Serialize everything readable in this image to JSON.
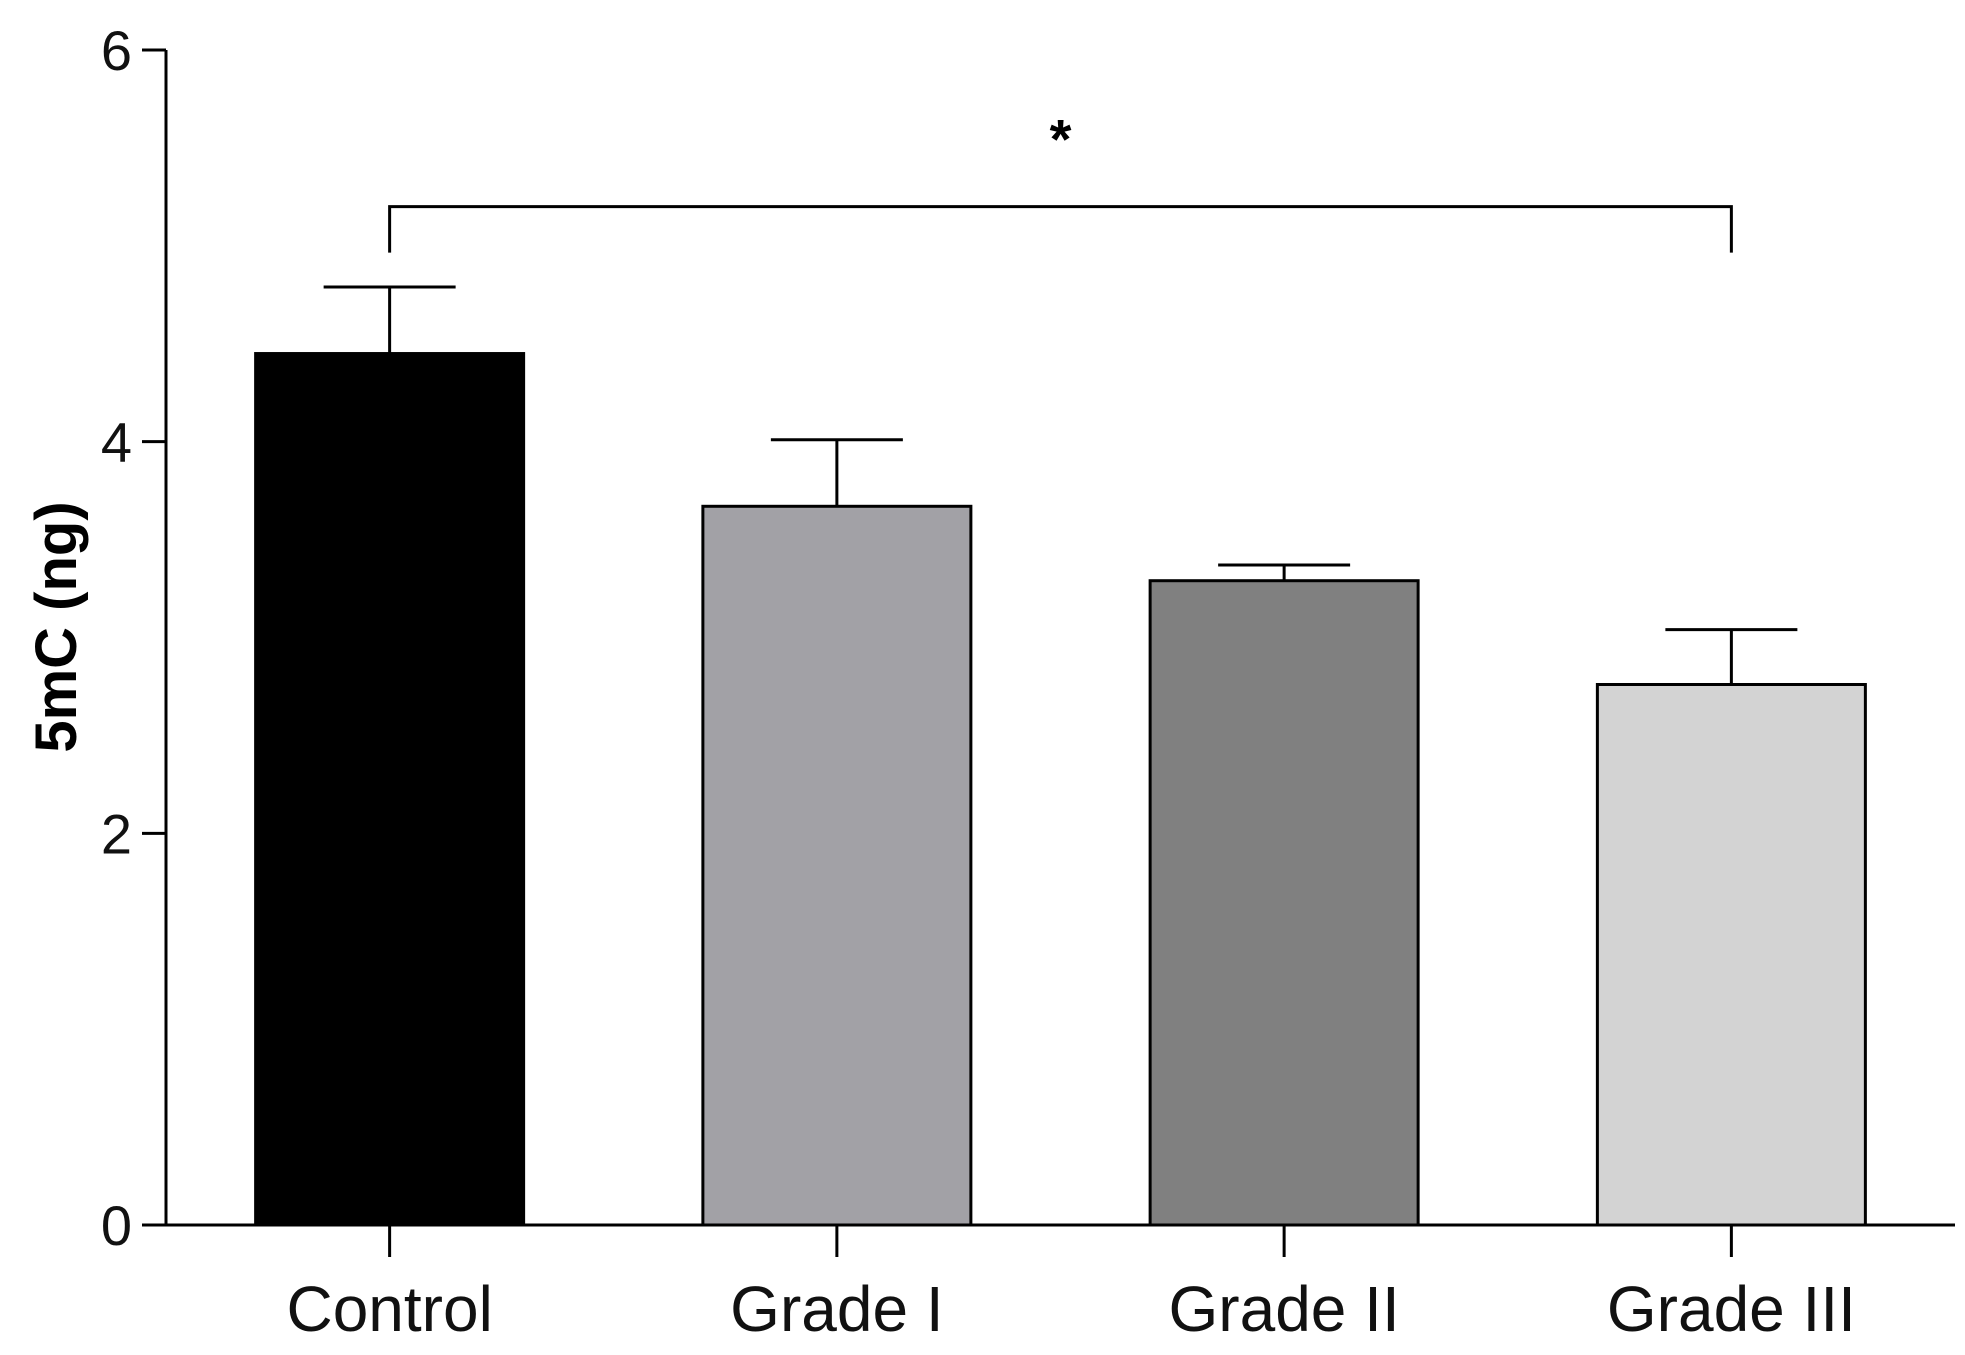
{
  "chart_data": {
    "type": "bar",
    "categories": [
      "Control",
      "Grade I",
      "Grade II",
      "Grade III"
    ],
    "values": [
      4.45,
      3.67,
      3.29,
      2.76
    ],
    "errors": [
      0.34,
      0.34,
      0.08,
      0.28
    ],
    "colors": [
      "#000000",
      "#a2a1a6",
      "#808080",
      "#d3d3d3"
    ],
    "title": "",
    "xlabel": "",
    "ylabel": "5mC (ng)",
    "ylim": [
      0,
      6
    ],
    "yticks": [
      "0",
      "2",
      "4",
      "6"
    ],
    "grid": false,
    "legend": "none",
    "annotations": [
      {
        "text": "*",
        "from": "Control",
        "to": "Grade III",
        "bracket_y": 5.2
      }
    ]
  }
}
